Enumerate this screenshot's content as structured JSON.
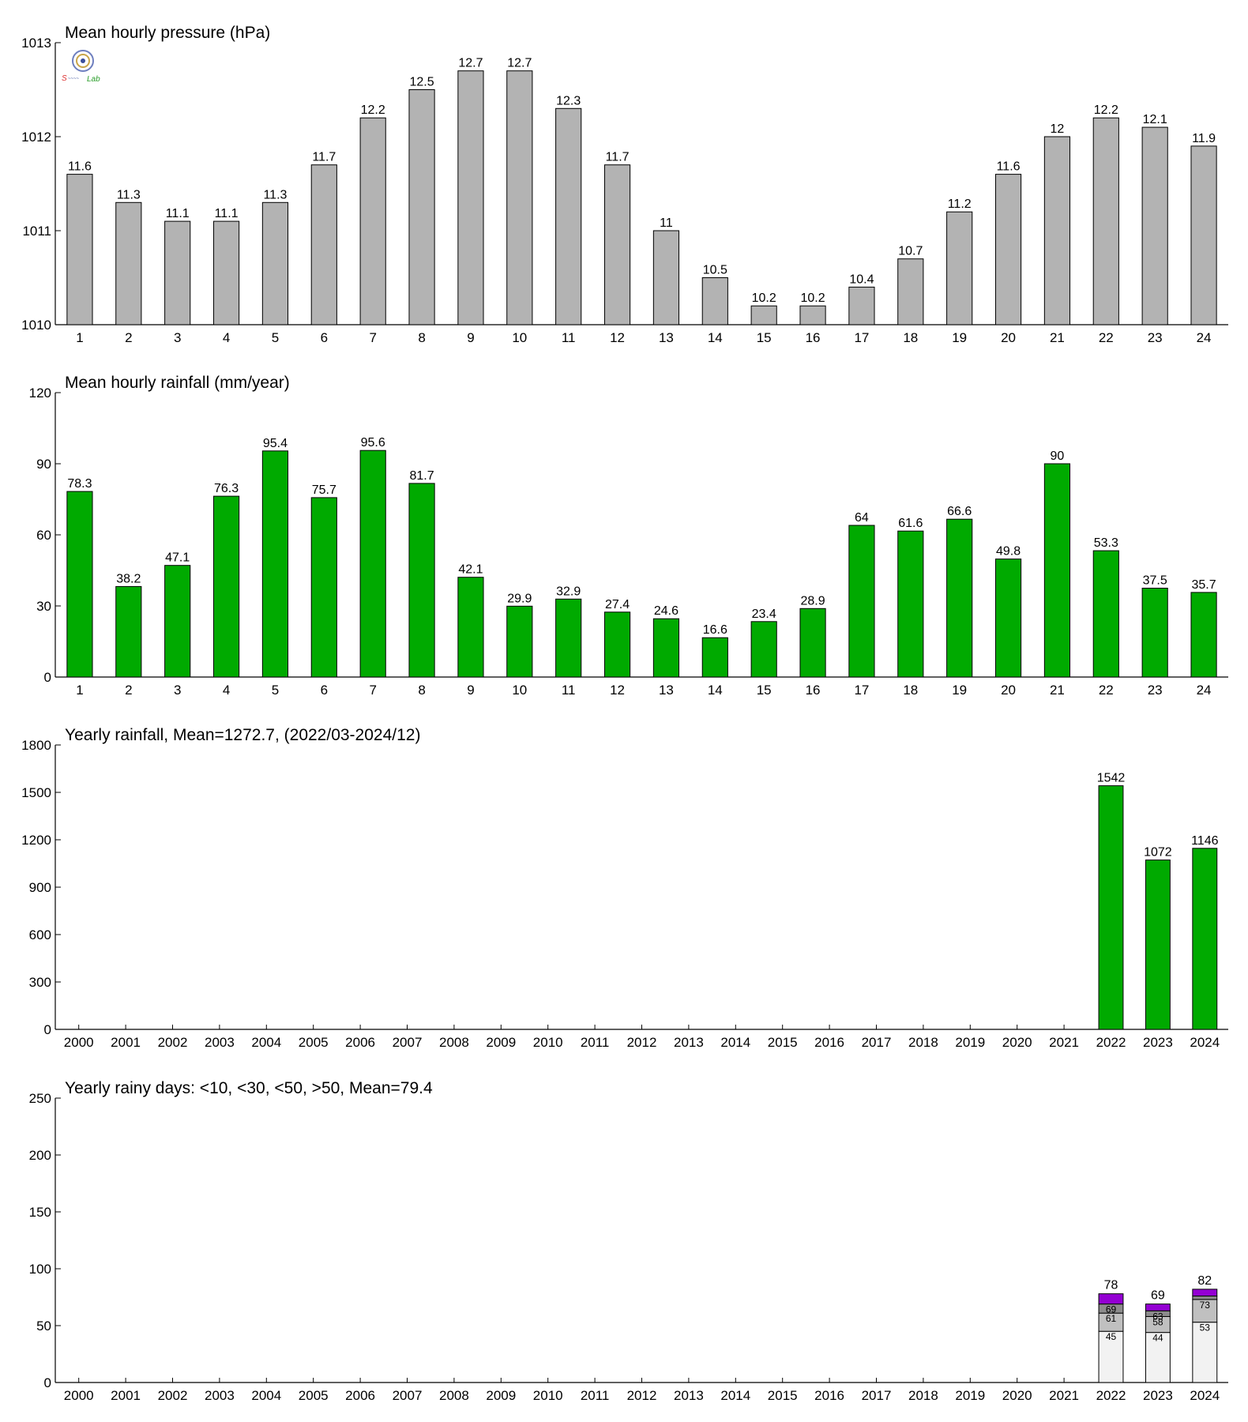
{
  "colors": {
    "pressure_bar": "#b3b3b3",
    "rain_bar": "#00aa00",
    "seg_lt10": "#f2f2f2",
    "seg_lt30": "#c0c0c0",
    "seg_lt50": "#8c8c8c",
    "seg_gt50": "#9400d3"
  },
  "logo": {
    "icon": "university-seal-logo",
    "text": "Lab"
  },
  "chart_data": [
    {
      "type": "bar",
      "title": "Mean hourly pressure (hPa)",
      "categories": [
        "1",
        "2",
        "3",
        "4",
        "5",
        "6",
        "7",
        "8",
        "9",
        "10",
        "11",
        "12",
        "13",
        "14",
        "15",
        "16",
        "17",
        "18",
        "19",
        "20",
        "21",
        "22",
        "23",
        "24"
      ],
      "values": [
        1011.6,
        1011.3,
        1011.1,
        1011.1,
        1011.3,
        1011.7,
        1012.2,
        1012.5,
        1012.7,
        1012.7,
        1012.3,
        1011.7,
        1011.0,
        1010.5,
        1010.2,
        1010.2,
        1010.4,
        1010.7,
        1011.2,
        1011.6,
        1012.0,
        1012.2,
        1012.1,
        1011.9
      ],
      "value_labels": [
        "11.6",
        "11.3",
        "11.1",
        "11.1",
        "11.3",
        "11.7",
        "12.2",
        "12.5",
        "12.7",
        "12.7",
        "12.3",
        "11.7",
        "11",
        "10.5",
        "10.2",
        "10.2",
        "10.4",
        "10.7",
        "11.2",
        "11.6",
        "12",
        "12.2",
        "12.1",
        "11.9"
      ],
      "ylim": [
        1010,
        1013
      ],
      "yticks": [
        "1010",
        "1011",
        "1012",
        "1013"
      ],
      "grid": false
    },
    {
      "type": "bar",
      "title": "Mean hourly rainfall (mm/year)",
      "categories": [
        "1",
        "2",
        "3",
        "4",
        "5",
        "6",
        "7",
        "8",
        "9",
        "10",
        "11",
        "12",
        "13",
        "14",
        "15",
        "16",
        "17",
        "18",
        "19",
        "20",
        "21",
        "22",
        "23",
        "24"
      ],
      "values": [
        78.3,
        38.2,
        47.1,
        76.3,
        95.4,
        75.7,
        95.6,
        81.7,
        42.1,
        29.9,
        32.9,
        27.4,
        24.6,
        16.6,
        23.4,
        28.9,
        64,
        61.6,
        66.6,
        49.8,
        90,
        53.3,
        37.5,
        35.7
      ],
      "value_labels": [
        "78.3",
        "38.2",
        "47.1",
        "76.3",
        "95.4",
        "75.7",
        "95.6",
        "81.7",
        "42.1",
        "29.9",
        "32.9",
        "27.4",
        "24.6",
        "16.6",
        "23.4",
        "28.9",
        "64",
        "61.6",
        "66.6",
        "49.8",
        "90",
        "53.3",
        "37.5",
        "35.7"
      ],
      "ylim": [
        0,
        120
      ],
      "yticks": [
        "0",
        "30",
        "60",
        "90",
        "120"
      ],
      "grid": false
    },
    {
      "type": "bar",
      "title": "Yearly rainfall, Mean=1272.7, (2022/03-2024/12)",
      "categories": [
        "2000",
        "2001",
        "2002",
        "2003",
        "2004",
        "2005",
        "2006",
        "2007",
        "2008",
        "2009",
        "2010",
        "2011",
        "2012",
        "2013",
        "2014",
        "2015",
        "2016",
        "2017",
        "2018",
        "2019",
        "2020",
        "2021",
        "2022",
        "2023",
        "2024"
      ],
      "values": [
        null,
        null,
        null,
        null,
        null,
        null,
        null,
        null,
        null,
        null,
        null,
        null,
        null,
        null,
        null,
        null,
        null,
        null,
        null,
        null,
        null,
        null,
        1542,
        1072,
        1146
      ],
      "value_labels": [
        "",
        "",
        "",
        "",
        "",
        "",
        "",
        "",
        "",
        "",
        "",
        "",
        "",
        "",
        "",
        "",
        "",
        "",
        "",
        "",
        "",
        "",
        "1542",
        "1072",
        "1146"
      ],
      "ylim": [
        0,
        1800
      ],
      "yticks": [
        "0",
        "300",
        "600",
        "900",
        "1200",
        "1500",
        "1800"
      ],
      "grid": false
    },
    {
      "type": "bar",
      "stacked": true,
      "title": "Yearly rainy days: <10, <30, <50, >50, Mean=79.4",
      "categories": [
        "2000",
        "2001",
        "2002",
        "2003",
        "2004",
        "2005",
        "2006",
        "2007",
        "2008",
        "2009",
        "2010",
        "2011",
        "2012",
        "2013",
        "2014",
        "2015",
        "2016",
        "2017",
        "2018",
        "2019",
        "2020",
        "2021",
        "2022",
        "2023",
        "2024"
      ],
      "cumulative": [
        {
          "year": "2022",
          "lt10": 45,
          "lt30": 61,
          "lt50": 69,
          "total": 78,
          "labels": [
            "45",
            "61",
            "69",
            "78"
          ]
        },
        {
          "year": "2023",
          "lt10": 44,
          "lt30": 58,
          "lt50": 63,
          "total": 69,
          "labels": [
            "44",
            "58",
            "63",
            "69"
          ]
        },
        {
          "year": "2024",
          "lt10": 53,
          "lt30": 73,
          "lt50": 76,
          "total": 82,
          "labels": [
            "53",
            "73",
            "",
            "82"
          ]
        }
      ],
      "ylim": [
        0,
        250
      ],
      "yticks": [
        "0",
        "50",
        "100",
        "150",
        "200",
        "250"
      ],
      "grid": false
    }
  ]
}
